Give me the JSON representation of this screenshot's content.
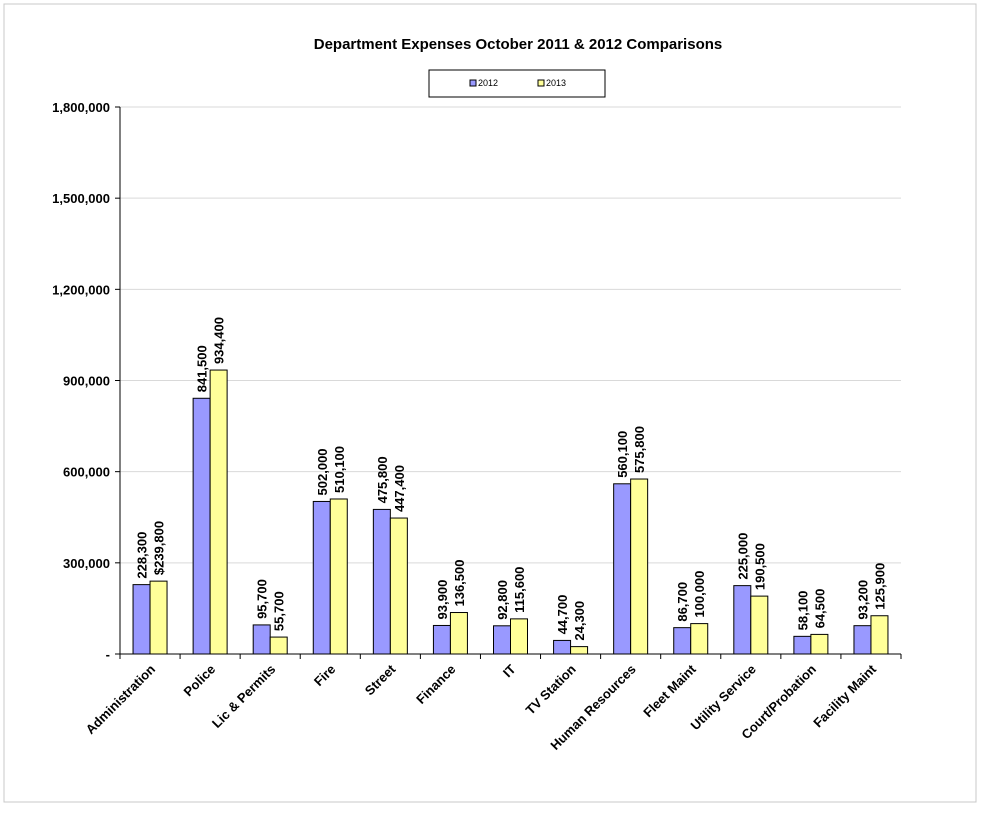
{
  "chart_data": {
    "type": "bar",
    "title": "Department Expenses October 2011 & 2012 Comparisons",
    "categories": [
      "Administration",
      "Police",
      "Lic & Permits",
      "Fire",
      "Street",
      "Finance",
      "IT",
      "TV Station",
      "Human Resources",
      "Fleet Maint",
      "Utility Service",
      "Court/Probation",
      "Facility Maint"
    ],
    "series": [
      {
        "name": "2012",
        "color": "#9999ff",
        "values": [
          228300,
          841500,
          95700,
          502000,
          475800,
          93900,
          92800,
          44700,
          560100,
          86700,
          225000,
          58100,
          93200
        ],
        "labels": [
          "228,300",
          "841,500",
          "95,700",
          "502,000",
          "475,800",
          "93,900",
          "92,800",
          "44,700",
          "560,100",
          "86,700",
          "225,000",
          "58,100",
          "93,200"
        ]
      },
      {
        "name": "2013",
        "color": "#ffff99",
        "values": [
          239800,
          934400,
          55700,
          510100,
          447400,
          136500,
          115600,
          24300,
          575800,
          100000,
          190500,
          64500,
          125900
        ],
        "labels": [
          "$239,800",
          "934,400",
          "55,700",
          "510,100",
          "447,400",
          "136,500",
          "115,600",
          "24,300",
          "575,800",
          "100,000",
          "190,500",
          "64,500",
          "125,900"
        ]
      }
    ],
    "ylim": [
      0,
      1800000
    ],
    "yticks": [
      0,
      300000,
      600000,
      900000,
      1200000,
      1500000,
      1800000
    ],
    "ytick_labels": [
      "-",
      "300,000",
      "600,000",
      "900,000",
      "1,200,000",
      "1,500,000",
      "1,800,000"
    ],
    "xlabel": "",
    "ylabel": "",
    "grid": true,
    "legend": "top-center"
  }
}
